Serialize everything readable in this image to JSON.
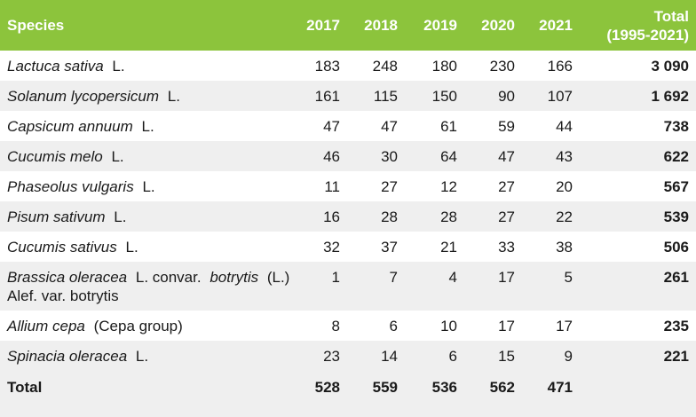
{
  "header": {
    "species": "Species",
    "years": [
      "2017",
      "2018",
      "2019",
      "2020",
      "2021"
    ],
    "total": [
      "Total",
      "(1995-2021)"
    ]
  },
  "rows": [
    {
      "species": [
        "Lactuca sativa",
        "L."
      ],
      "values": [
        183,
        248,
        180,
        230,
        166
      ],
      "total": "3 090"
    },
    {
      "species": [
        "Solanum lycopersicum",
        "L."
      ],
      "values": [
        161,
        115,
        150,
        90,
        107
      ],
      "total": "1 692"
    },
    {
      "species": [
        "Capsicum annuum",
        "L."
      ],
      "values": [
        47,
        47,
        61,
        59,
        44
      ],
      "total": 738
    },
    {
      "species": [
        "Cucumis melo",
        "L."
      ],
      "values": [
        46,
        30,
        64,
        47,
        43
      ],
      "total": 622
    },
    {
      "species": [
        "Phaseolus vulgaris",
        "L."
      ],
      "values": [
        11,
        27,
        12,
        27,
        20
      ],
      "total": 567
    },
    {
      "species": [
        "Pisum sativum",
        "L."
      ],
      "values": [
        16,
        28,
        28,
        27,
        22
      ],
      "total": 539
    },
    {
      "species": [
        "Cucumis sativus",
        "L."
      ],
      "values": [
        32,
        37,
        21,
        33,
        38
      ],
      "total": 506
    },
    {
      "species": [
        "Brassica oleracea",
        "L. convar.",
        "botrytis",
        "(L.) Alef. var. botrytis"
      ],
      "values": [
        1,
        7,
        4,
        17,
        5
      ],
      "total": 261
    },
    {
      "species": [
        "Allium cepa",
        "(Cepa group)"
      ],
      "values": [
        8,
        6,
        10,
        17,
        17
      ],
      "total": 235
    },
    {
      "species": [
        "Spinacia oleracea",
        "L."
      ],
      "values": [
        23,
        14,
        6,
        15,
        9
      ],
      "total": 221
    }
  ],
  "footer": {
    "label": "Total",
    "values": [
      528,
      559,
      536,
      562,
      471
    ]
  }
}
